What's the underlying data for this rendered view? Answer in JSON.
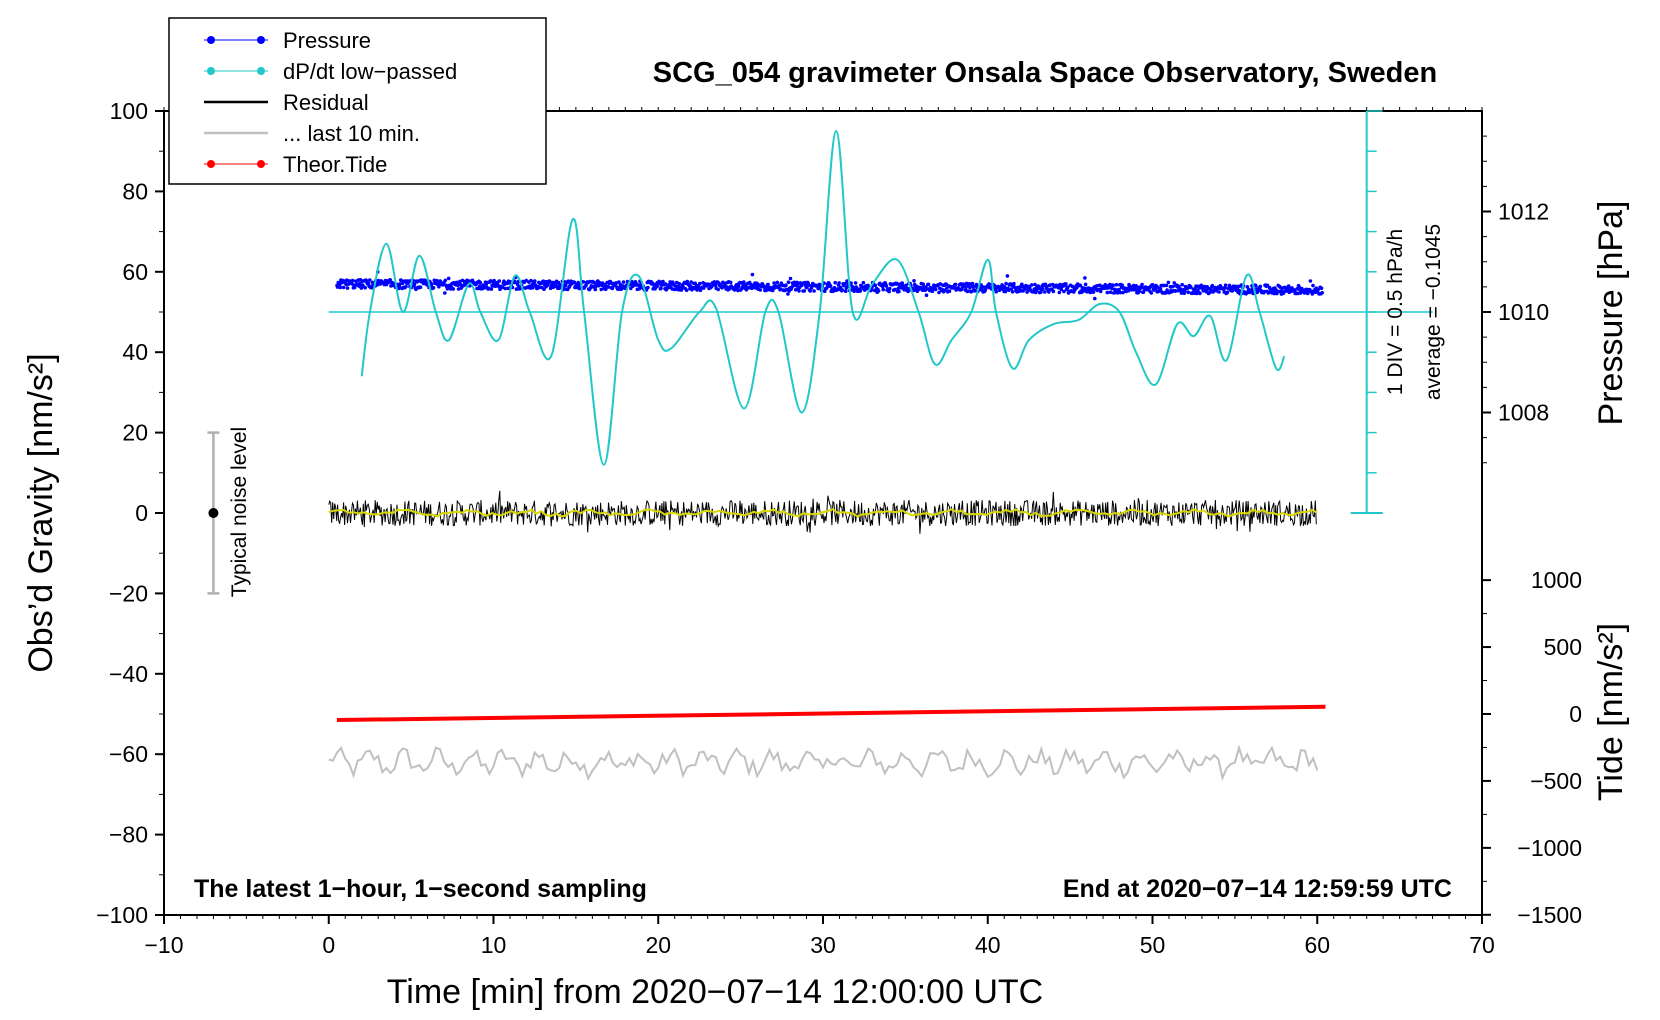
{
  "chart_data": {
    "type": "line",
    "title": "SCG_054 gravimeter Onsala Space Observatory, Sweden",
    "xlabel": "Time [min] from 2020−07−14 12:00:00 UTC",
    "ylabel_left": "Obs’d Gravity [nm/s²]",
    "ylabel_right_top": "Pressure [hPa]",
    "ylabel_right_bottom": "Tide [nm/s²]",
    "xlim": [
      -10,
      70
    ],
    "ylim": [
      -100,
      100
    ],
    "x_ticks": [
      -10,
      0,
      10,
      20,
      30,
      40,
      50,
      60,
      70
    ],
    "x_tick_labels": [
      "−10",
      "0",
      "10",
      "20",
      "30",
      "40",
      "50",
      "60",
      "70"
    ],
    "y_ticks": [
      100,
      80,
      60,
      40,
      20,
      0,
      -20,
      -40,
      -60,
      -80,
      -100
    ],
    "y_tick_labels": [
      "100",
      "80",
      "60",
      "40",
      "20",
      "0",
      "−20",
      "−40",
      "−60",
      "−80",
      "−100"
    ],
    "pressure_axis": {
      "ticks": [
        1012,
        1010,
        1008
      ],
      "tick_labels": [
        "1012",
        "1010",
        "1008"
      ],
      "pos_at_1010": 50,
      "units_per_hPa": 12.5
    },
    "tide_axis": {
      "ticks": [
        1000,
        500,
        0,
        -500,
        -1000,
        -1500
      ],
      "tick_labels": [
        "1000",
        "500",
        "0",
        "−500",
        "−1000",
        "−1500"
      ],
      "pos_at_0": -50,
      "units_per_1000": 33.3
    },
    "legend": {
      "position": "top-left",
      "entries": [
        {
          "label": "Pressure",
          "color": "#0000ff",
          "marker": "dot"
        },
        {
          "label": "dP/dt low−passed",
          "color": "#22c8c8",
          "marker": "dot"
        },
        {
          "label": "Residual",
          "color": "#000000",
          "marker": "line"
        },
        {
          "label": "... last 10 min.",
          "color": "#c0c0c0",
          "marker": "line"
        },
        {
          "label": "Theor.Tide",
          "color": "#ff0000",
          "marker": "dot"
        }
      ]
    },
    "series": [
      {
        "name": "dP/dt low−passed",
        "color": "#22c8c8",
        "x": [
          2,
          2.5,
          3.5,
          4.5,
          5.5,
          6.5,
          7.3,
          8.5,
          9.2,
          10.3,
          11.3,
          12.2,
          13.5,
          14.8,
          15.5,
          16.7,
          17.8,
          18.8,
          20,
          20.8,
          22.5,
          23.5,
          25.2,
          26.5,
          27.3,
          28.7,
          29.8,
          30.8,
          31.8,
          33,
          34.5,
          35.8,
          36.8,
          37.8,
          39,
          40,
          40.5,
          41.5,
          42.5,
          44,
          45.5,
          46.8,
          48,
          49,
          50.2,
          51.5,
          52.5,
          53.5,
          54.5,
          55.7,
          56.5,
          57.5,
          58
        ],
        "values": [
          34,
          50,
          67,
          50,
          64,
          50,
          43,
          57,
          50,
          43,
          59,
          50,
          39,
          73,
          50,
          12,
          50,
          59,
          43,
          41,
          50,
          51,
          26,
          50,
          50,
          25,
          50,
          95,
          50,
          57,
          63,
          50,
          37,
          43,
          50,
          63,
          50,
          36,
          43,
          47,
          48,
          52,
          50,
          40,
          32,
          47,
          44,
          49,
          38,
          59,
          50,
          36,
          39
        ]
      },
      {
        "name": "Pressure",
        "color": "#0000ff",
        "x": [
          0.5,
          60.3
        ],
        "values": [
          57,
          55.5
        ]
      },
      {
        "name": "Residual",
        "color": "#000000",
        "x": [
          0,
          60
        ],
        "values": [
          0,
          0
        ]
      },
      {
        "name": "... last 10 min.",
        "color": "#c0c0c0",
        "x": [
          0,
          60
        ],
        "values": [
          -62,
          -62
        ]
      },
      {
        "name": "Theor.Tide",
        "color": "#ff0000",
        "x": [
          0.5,
          60.5
        ],
        "values": [
          -51.5,
          -48.2
        ]
      }
    ],
    "annotations": {
      "div_label": "1 DIV = 0.5 hPa/h",
      "average_label": "average = −0.1045",
      "noise_label": "Typical noise level",
      "noise_range": [
        -20,
        20
      ],
      "noise_x": -7,
      "bottom_left": "The latest 1−hour, 1−second sampling",
      "bottom_right": "End at 2020−07−14 12:59:59 UTC"
    }
  }
}
